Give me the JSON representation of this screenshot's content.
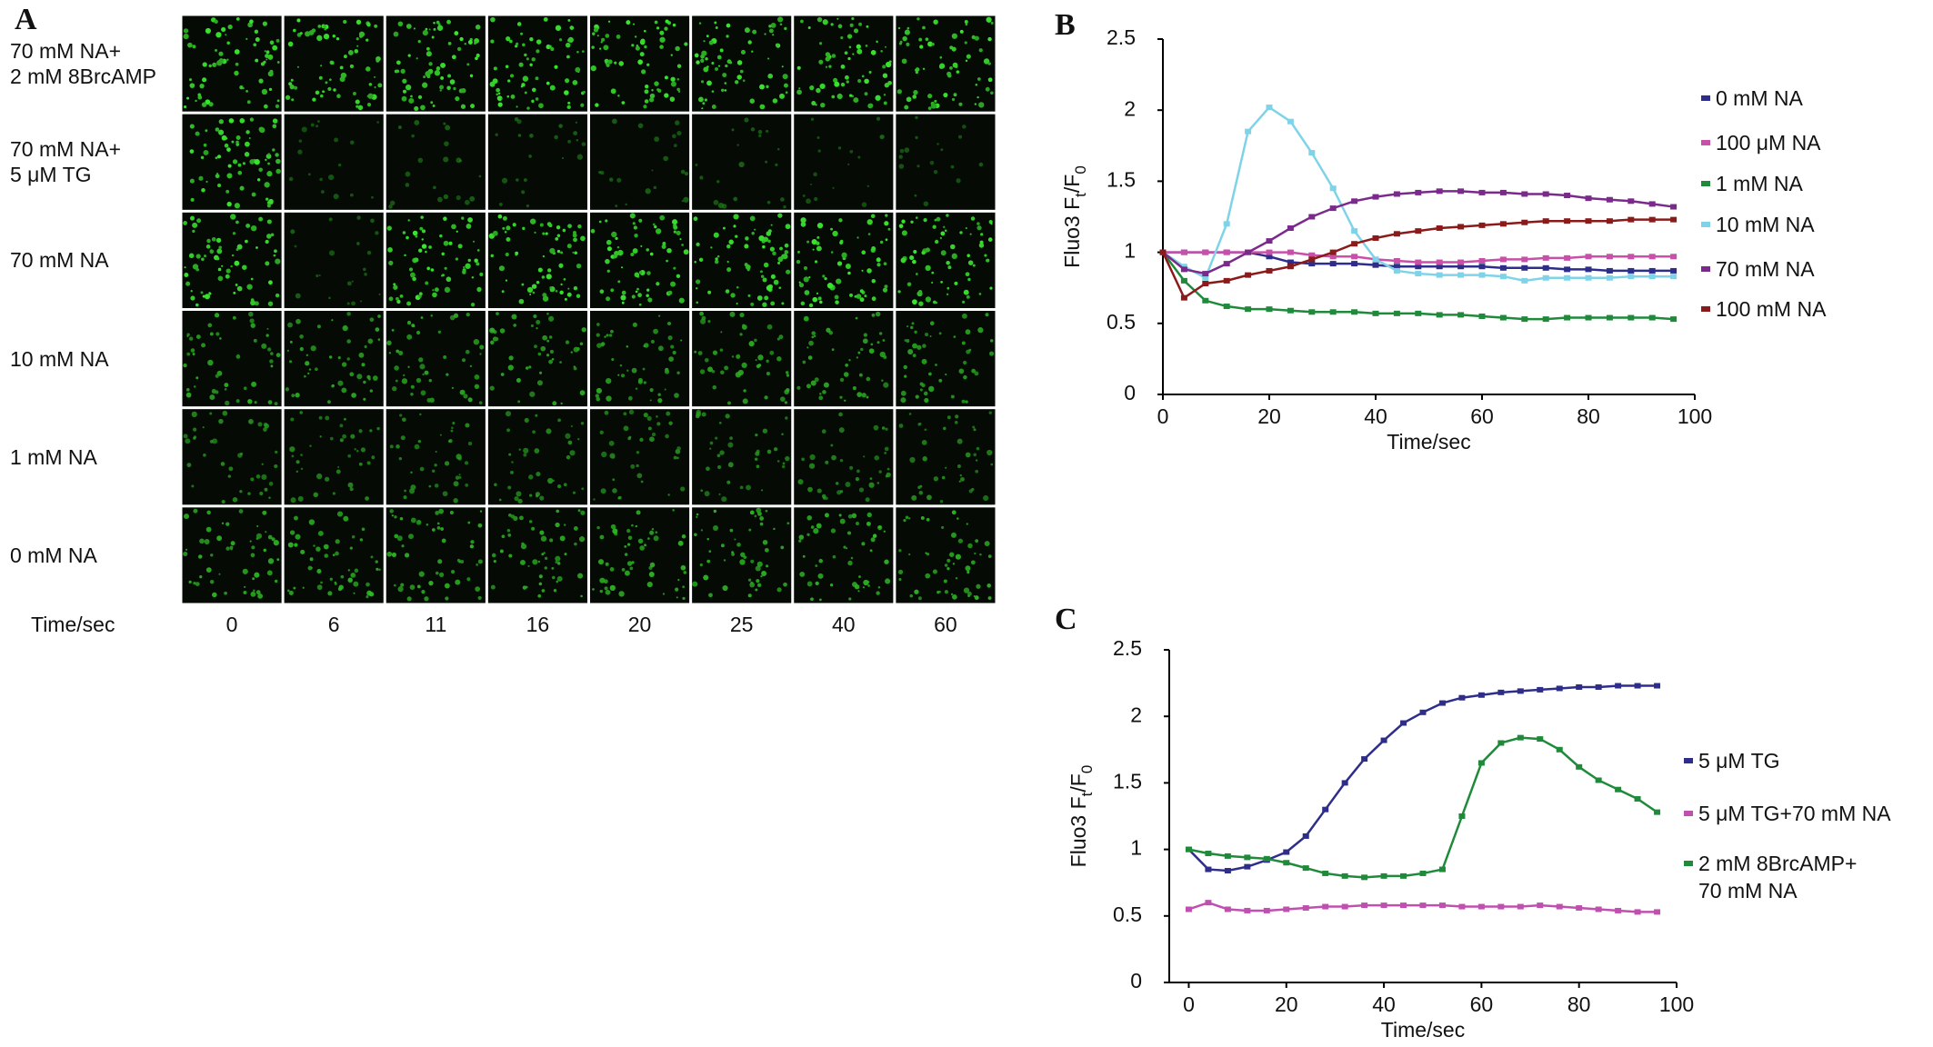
{
  "panel_a": {
    "label": "A",
    "row_labels": [
      "70 mM NA+\n2 mM 8BrcAMP",
      "70 mM NA+\n5 μM TG",
      "70 mM NA",
      "10 mM NA",
      "1 mM NA",
      "0 mM NA"
    ],
    "time_label": "Time/sec",
    "times": [
      0,
      6,
      11,
      16,
      20,
      25,
      40,
      60
    ]
  },
  "chart_data": [
    {
      "type": "line",
      "panel": "B",
      "ylabel": [
        "Fluo3 F",
        "t",
        "/F",
        "0"
      ],
      "xlabel": "Time/sec",
      "x": [
        0,
        4,
        8,
        12,
        16,
        20,
        24,
        28,
        32,
        36,
        40,
        44,
        48,
        52,
        56,
        60,
        64,
        68,
        72,
        76,
        80,
        84,
        88,
        92,
        96
      ],
      "xlim": [
        0,
        100
      ],
      "ylim": [
        0,
        2.5
      ],
      "xticks": [
        0,
        20,
        40,
        60,
        80,
        100
      ],
      "yticks": [
        0,
        0.5,
        1,
        1.5,
        2,
        2.5
      ],
      "series": [
        {
          "name": "0 mM NA",
          "color": "#2e2e8a",
          "values": [
            1,
            1,
            1,
            1,
            1,
            0.97,
            0.93,
            0.92,
            0.92,
            0.92,
            0.91,
            0.9,
            0.9,
            0.9,
            0.9,
            0.9,
            0.89,
            0.89,
            0.89,
            0.88,
            0.88,
            0.87,
            0.87,
            0.87,
            0.87
          ]
        },
        {
          "name": "100 μM NA",
          "color": "#c850a8",
          "values": [
            1,
            1,
            1,
            1,
            1,
            1,
            1,
            0.98,
            0.97,
            0.97,
            0.95,
            0.94,
            0.93,
            0.93,
            0.93,
            0.94,
            0.95,
            0.95,
            0.96,
            0.96,
            0.97,
            0.97,
            0.97,
            0.97,
            0.97
          ]
        },
        {
          "name": "1 mM NA",
          "color": "#1e8a3a",
          "values": [
            1,
            0.8,
            0.66,
            0.62,
            0.6,
            0.6,
            0.59,
            0.58,
            0.58,
            0.58,
            0.57,
            0.57,
            0.57,
            0.56,
            0.56,
            0.55,
            0.54,
            0.53,
            0.53,
            0.54,
            0.54,
            0.54,
            0.54,
            0.54,
            0.53
          ]
        },
        {
          "name": "10 mM NA",
          "color": "#7fd3e8",
          "values": [
            1,
            0.9,
            0.82,
            1.2,
            1.85,
            2.02,
            1.92,
            1.7,
            1.45,
            1.15,
            0.95,
            0.87,
            0.85,
            0.84,
            0.84,
            0.84,
            0.83,
            0.8,
            0.82,
            0.82,
            0.82,
            0.82,
            0.83,
            0.83,
            0.83
          ]
        },
        {
          "name": "70 mM NA",
          "color": "#7a2a8a",
          "values": [
            1,
            0.88,
            0.85,
            0.92,
            1.0,
            1.08,
            1.17,
            1.25,
            1.31,
            1.36,
            1.39,
            1.41,
            1.42,
            1.43,
            1.43,
            1.42,
            1.42,
            1.41,
            1.41,
            1.4,
            1.38,
            1.37,
            1.36,
            1.34,
            1.32
          ]
        },
        {
          "name": "100 mM NA",
          "color": "#8b1a1a",
          "values": [
            1,
            0.68,
            0.78,
            0.8,
            0.84,
            0.87,
            0.9,
            0.95,
            1.0,
            1.06,
            1.1,
            1.13,
            1.15,
            1.17,
            1.18,
            1.19,
            1.2,
            1.21,
            1.22,
            1.22,
            1.22,
            1.22,
            1.23,
            1.23,
            1.23
          ]
        }
      ]
    },
    {
      "type": "line",
      "panel": "C",
      "ylabel": [
        "Fluo3 F",
        "t",
        "/F",
        "0"
      ],
      "xlabel": "Time/sec",
      "x": [
        0,
        4,
        8,
        12,
        16,
        20,
        24,
        28,
        32,
        36,
        40,
        44,
        48,
        52,
        56,
        60,
        64,
        68,
        72,
        76,
        80,
        84,
        88,
        92,
        96
      ],
      "xlim": [
        -4,
        100
      ],
      "ylim": [
        0,
        2.5
      ],
      "xticks": [
        0,
        20,
        40,
        60,
        80,
        100
      ],
      "yticks": [
        0,
        0.5,
        1,
        1.5,
        2,
        2.5
      ],
      "series": [
        {
          "name": "5 μM TG",
          "color": "#2e2e8a",
          "values": [
            1,
            0.85,
            0.84,
            0.87,
            0.92,
            0.98,
            1.1,
            1.3,
            1.5,
            1.68,
            1.82,
            1.95,
            2.03,
            2.1,
            2.14,
            2.16,
            2.18,
            2.19,
            2.2,
            2.21,
            2.22,
            2.22,
            2.23,
            2.23,
            2.23
          ]
        },
        {
          "name": "5 μM TG+70 mM NA",
          "color": "#c050b0",
          "values": [
            0.55,
            0.6,
            0.55,
            0.54,
            0.54,
            0.55,
            0.56,
            0.57,
            0.57,
            0.58,
            0.58,
            0.58,
            0.58,
            0.58,
            0.57,
            0.57,
            0.57,
            0.57,
            0.58,
            0.57,
            0.56,
            0.55,
            0.54,
            0.53,
            0.53
          ]
        },
        {
          "name": "2 mM 8BrcAMP+\n70 mM NA",
          "color": "#1e8a3a",
          "values": [
            1,
            0.97,
            0.95,
            0.94,
            0.93,
            0.9,
            0.86,
            0.82,
            0.8,
            0.79,
            0.8,
            0.8,
            0.82,
            0.85,
            1.25,
            1.65,
            1.8,
            1.84,
            1.83,
            1.75,
            1.62,
            1.52,
            1.45,
            1.38,
            1.28
          ]
        }
      ]
    }
  ]
}
